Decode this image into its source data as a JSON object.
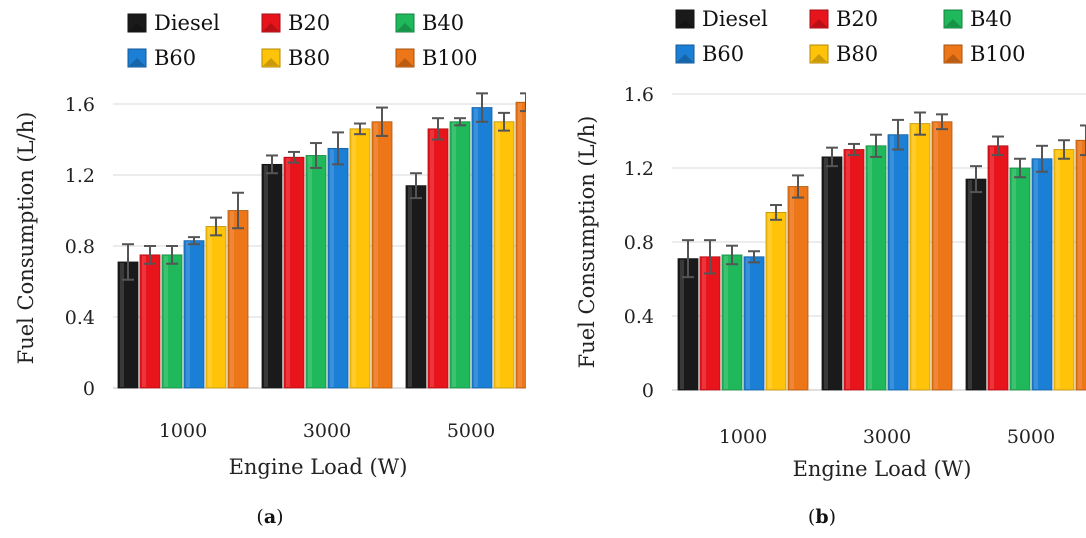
{
  "colors": {
    "Diesel": "#1a1a1a",
    "B20": "#e8141c",
    "B40": "#1fb85a",
    "B60": "#1c7fd6",
    "B80": "#ffc40a",
    "B100": "#ec7618",
    "grid": "#d9d9d9",
    "error_bar": "#555555"
  },
  "chart_data": [
    {
      "type": "bar",
      "caption_letter": "a",
      "categories": [
        "1000",
        "3000",
        "5000"
      ],
      "xlabel": "Engine Load (W)",
      "ylabel": "Fuel Consumption (L/h)",
      "ylim": [
        0,
        1.6
      ],
      "yticks": [
        "0",
        "0.4",
        "0.8",
        "1.2",
        "1.6"
      ],
      "grid": true,
      "legend": "top",
      "series": [
        {
          "name": "Diesel",
          "values": [
            0.71,
            1.26,
            1.14
          ],
          "errors": [
            0.1,
            0.05,
            0.07
          ]
        },
        {
          "name": "B20",
          "values": [
            0.75,
            1.3,
            1.46
          ],
          "errors": [
            0.05,
            0.03,
            0.06
          ]
        },
        {
          "name": "B40",
          "values": [
            0.75,
            1.31,
            1.5
          ],
          "errors": [
            0.05,
            0.07,
            0.02
          ]
        },
        {
          "name": "B60",
          "values": [
            0.83,
            1.35,
            1.58
          ],
          "errors": [
            0.02,
            0.09,
            0.08
          ]
        },
        {
          "name": "B80",
          "values": [
            0.91,
            1.46,
            1.5
          ],
          "errors": [
            0.05,
            0.03,
            0.05
          ]
        },
        {
          "name": "B100",
          "values": [
            1.0,
            1.5,
            1.61
          ],
          "errors": [
            0.1,
            0.08,
            0.05
          ]
        }
      ]
    },
    {
      "type": "bar",
      "caption_letter": "b",
      "categories": [
        "1000",
        "3000",
        "5000"
      ],
      "xlabel": "Engine Load (W)",
      "ylabel": "Fuel Consumption (L/h)",
      "ylim": [
        0,
        1.6
      ],
      "yticks": [
        "0",
        "0.4",
        "0.8",
        "1.2",
        "1.6"
      ],
      "grid": true,
      "legend": "top",
      "series": [
        {
          "name": "Diesel",
          "values": [
            0.71,
            1.26,
            1.14
          ],
          "errors": [
            0.1,
            0.05,
            0.07
          ]
        },
        {
          "name": "B20",
          "values": [
            0.72,
            1.3,
            1.32
          ],
          "errors": [
            0.09,
            0.03,
            0.05
          ]
        },
        {
          "name": "B40",
          "values": [
            0.73,
            1.32,
            1.2
          ],
          "errors": [
            0.05,
            0.06,
            0.05
          ]
        },
        {
          "name": "B60",
          "values": [
            0.72,
            1.38,
            1.25
          ],
          "errors": [
            0.03,
            0.08,
            0.07
          ]
        },
        {
          "name": "B80",
          "values": [
            0.96,
            1.44,
            1.3
          ],
          "errors": [
            0.04,
            0.06,
            0.05
          ]
        },
        {
          "name": "B100",
          "values": [
            1.1,
            1.45,
            1.35
          ],
          "errors": [
            0.06,
            0.04,
            0.08
          ]
        }
      ]
    }
  ]
}
